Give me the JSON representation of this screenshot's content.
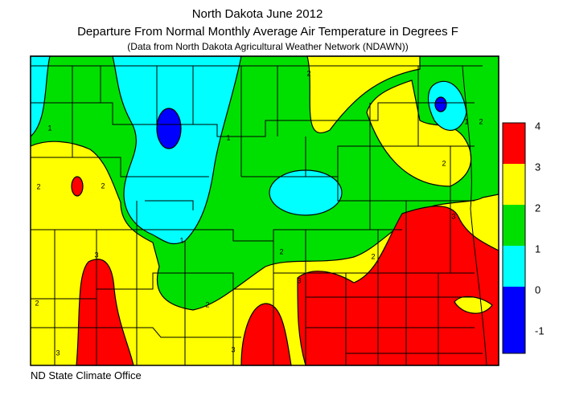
{
  "header": {
    "title": "North Dakota June 2012",
    "subtitle": "Departure From Normal Monthly Average Air Temperature in Degrees F",
    "source": "(Data from North Dakota Agricultural Weather Network (NDAWN))"
  },
  "legend": {
    "ticks": [
      4,
      3,
      2,
      1,
      0,
      -1
    ],
    "colors": [
      "#ff0000",
      "#ffff00",
      "#00e000",
      "#00ffff",
      "#0000ff"
    ]
  },
  "contour_labels": [
    "2",
    "1",
    "1",
    "2",
    "2",
    "1",
    "2",
    "3",
    "3",
    "2",
    "2",
    "3",
    "3",
    "2",
    "3",
    "1",
    "2",
    "2"
  ],
  "footer": "ND State Climate Office"
}
